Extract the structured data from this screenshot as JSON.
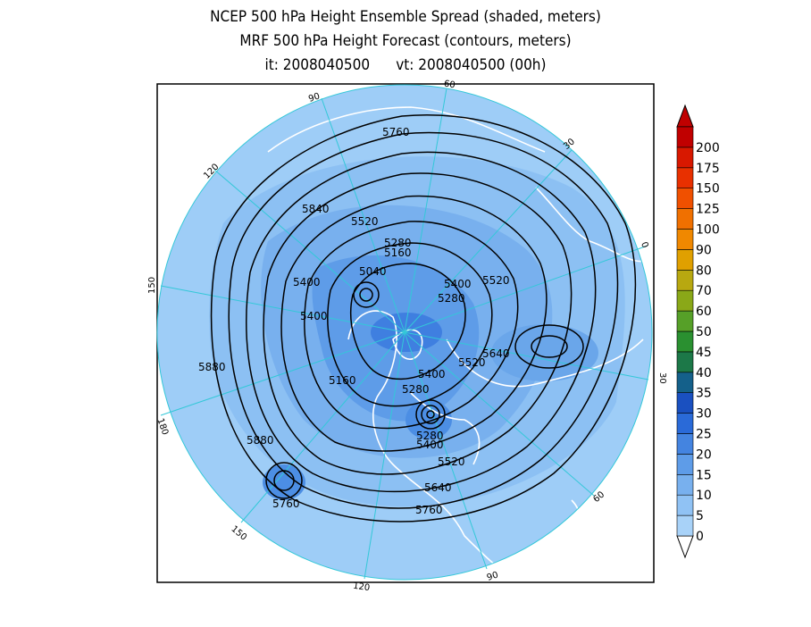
{
  "title": {
    "line1": "NCEP 500 hPa Height Ensemble Spread (shaded, meters)",
    "line2": "MRF 500 hPa Height Forecast (contours, meters)",
    "line3": "it: 2008040500      vt: 2008040500 (00h)"
  },
  "map": {
    "projection": "north-polar-stereographic",
    "longitude_labels": [
      "60",
      "30",
      "0",
      "30",
      "60",
      "90",
      "120",
      "150",
      "180",
      "150",
      "120",
      "90"
    ],
    "contour_labels": [
      "5760",
      "5840",
      "5520",
      "5280",
      "5160",
      "5040",
      "5400",
      "5400",
      "5400",
      "5280",
      "5520",
      "5880",
      "5160",
      "5640",
      "5520",
      "5400",
      "5280",
      "5880",
      "5280",
      "5400",
      "5520",
      "5640",
      "5760",
      "5760"
    ],
    "colors": {
      "ocean_base": "#9ecdf7",
      "shade_light": "#7fb6f0",
      "shade_mid": "#5a98e8",
      "shade_dark": "#2e6ad8",
      "coastline": "#ffffff",
      "meridian": "#33c8d8",
      "contour": "#000000"
    }
  },
  "colorbar": {
    "labels": [
      "0",
      "5",
      "10",
      "15",
      "20",
      "25",
      "30",
      "35",
      "40",
      "45",
      "50",
      "60",
      "70",
      "80",
      "90",
      "100",
      "125",
      "150",
      "175",
      "200"
    ],
    "colors": [
      "#a8d2f8",
      "#90c2f4",
      "#78b0ee",
      "#5e9ce8",
      "#4484e0",
      "#2a6ad8",
      "#1a50c0",
      "#14608a",
      "#1c7848",
      "#2a9030",
      "#56a028",
      "#8aa818",
      "#b8a810",
      "#e0a000",
      "#f08800",
      "#f07000",
      "#f05000",
      "#e83000",
      "#d81800",
      "#c00000"
    ]
  }
}
